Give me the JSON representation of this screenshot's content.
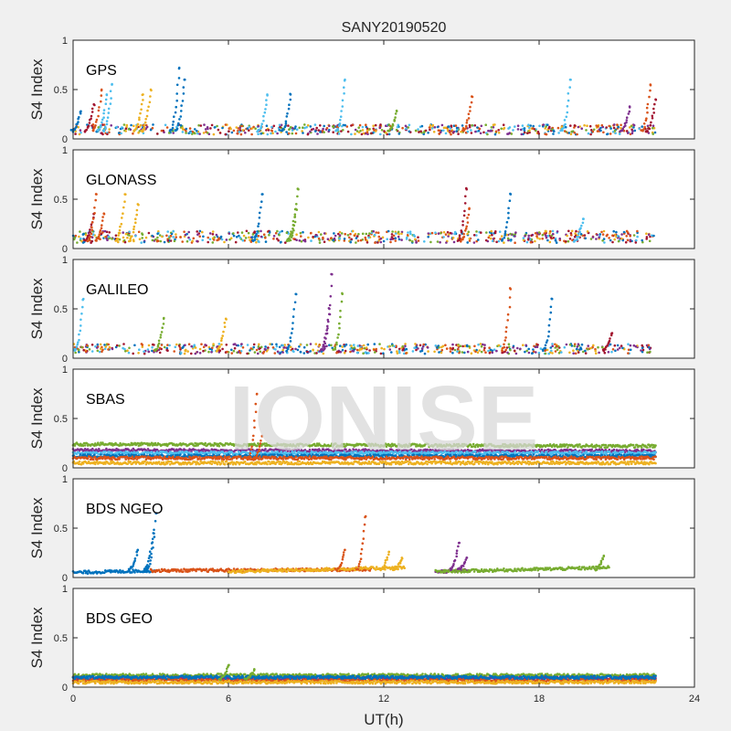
{
  "title": "SANY20190520",
  "xlabel": "UT(h)",
  "ylabel": "S4 Index",
  "watermark": "IONISE",
  "colors": [
    "#0072bd",
    "#d95319",
    "#edb120",
    "#7e2f8e",
    "#77ac30",
    "#4dbeee",
    "#a2142f"
  ],
  "chart_data": [
    {
      "type": "scatter",
      "label": "GPS",
      "xlim": [
        0,
        24
      ],
      "ylim": [
        0,
        1
      ],
      "xticks": [
        0,
        6,
        12,
        18,
        24
      ],
      "yticks": [
        0,
        0.5,
        1
      ],
      "xlabel": "UT(h)",
      "ylabel": "S4 Index",
      "baseline": 0.08,
      "noise": 0.05,
      "density": 220,
      "series": [
        {
          "x": [
            0,
            22.5
          ],
          "y": [
            0.1,
            0.1
          ]
        }
      ],
      "spikes": [
        [
          0.3,
          0.28,
          0
        ],
        [
          0.8,
          0.35,
          6
        ],
        [
          1.1,
          0.5,
          1
        ],
        [
          1.3,
          0.45,
          5
        ],
        [
          1.5,
          0.55,
          5
        ],
        [
          2.7,
          0.45,
          2
        ],
        [
          3.0,
          0.5,
          2
        ],
        [
          4.1,
          0.72,
          0
        ],
        [
          4.3,
          0.6,
          0
        ],
        [
          7.5,
          0.45,
          5
        ],
        [
          8.4,
          0.45,
          0
        ],
        [
          10.5,
          0.6,
          5
        ],
        [
          12.5,
          0.28,
          4
        ],
        [
          15.4,
          0.43,
          1
        ],
        [
          19.2,
          0.6,
          5
        ],
        [
          21.5,
          0.32,
          3
        ],
        [
          22.3,
          0.55,
          1
        ],
        [
          22.5,
          0.4,
          6
        ]
      ]
    },
    {
      "type": "scatter",
      "label": "GLONASS",
      "xlim": [
        0,
        24
      ],
      "ylim": [
        0,
        1
      ],
      "xticks": [
        0,
        6,
        12,
        18,
        24
      ],
      "yticks": [
        0,
        0.5,
        1
      ],
      "xlabel": "UT(h)",
      "ylabel": "S4 Index",
      "baseline": 0.1,
      "noise": 0.06,
      "density": 220,
      "series": [
        {
          "x": [
            0,
            22.5
          ],
          "y": [
            0.1,
            0.1
          ]
        }
      ],
      "spikes": [
        [
          0.8,
          0.35,
          6
        ],
        [
          0.9,
          0.55,
          1
        ],
        [
          1.2,
          0.35,
          1
        ],
        [
          2.0,
          0.55,
          2
        ],
        [
          2.5,
          0.45,
          2
        ],
        [
          7.3,
          0.55,
          0
        ],
        [
          8.6,
          0.4,
          4
        ],
        [
          8.7,
          0.6,
          4
        ],
        [
          15.2,
          0.6,
          6
        ],
        [
          16.9,
          0.55,
          0
        ],
        [
          15.3,
          0.4,
          1
        ],
        [
          19.7,
          0.3,
          5
        ]
      ]
    },
    {
      "type": "scatter",
      "label": "GALILEO",
      "xlim": [
        0,
        24
      ],
      "ylim": [
        0,
        1
      ],
      "xticks": [
        0,
        6,
        12,
        18,
        24
      ],
      "yticks": [
        0,
        0.5,
        1
      ],
      "xlabel": "UT(h)",
      "ylabel": "S4 Index",
      "baseline": 0.08,
      "noise": 0.05,
      "density": 200,
      "series": [
        {
          "x": [
            0,
            22.5
          ],
          "y": [
            0.09,
            0.09
          ]
        }
      ],
      "spikes": [
        [
          0.4,
          0.6,
          5
        ],
        [
          3.5,
          0.4,
          4
        ],
        [
          5.9,
          0.4,
          2
        ],
        [
          8.6,
          0.65,
          0
        ],
        [
          9.9,
          0.5,
          3
        ],
        [
          10.0,
          0.85,
          3
        ],
        [
          10.4,
          0.65,
          4
        ],
        [
          16.9,
          0.7,
          1
        ],
        [
          18.5,
          0.6,
          0
        ],
        [
          20.8,
          0.25,
          6
        ]
      ]
    },
    {
      "type": "scatter",
      "label": "SBAS",
      "xlim": [
        0,
        24
      ],
      "ylim": [
        0,
        1
      ],
      "xticks": [
        0,
        6,
        12,
        18,
        24
      ],
      "yticks": [
        0,
        0.5,
        1
      ],
      "xlabel": "UT(h)",
      "ylabel": "S4 Index",
      "series": [
        {
          "x": [
            0,
            22.5
          ],
          "y": [
            0.24,
            0.22
          ],
          "color": 4
        },
        {
          "x": [
            0,
            22.5
          ],
          "y": [
            0.18,
            0.17
          ],
          "color": 3
        },
        {
          "x": [
            0,
            22.5
          ],
          "y": [
            0.15,
            0.15
          ],
          "color": 5
        },
        {
          "x": [
            0,
            22.5
          ],
          "y": [
            0.12,
            0.12
          ],
          "color": 0
        },
        {
          "x": [
            0,
            22.5
          ],
          "y": [
            0.1,
            0.1
          ],
          "color": 1
        },
        {
          "x": [
            0,
            22.5
          ],
          "y": [
            0.05,
            0.05
          ],
          "color": 2
        }
      ],
      "spikes": [
        [
          7.1,
          0.75,
          1
        ],
        [
          7.3,
          0.32,
          1
        ]
      ]
    },
    {
      "type": "scatter",
      "label": "BDS NGEO",
      "xlim": [
        0,
        24
      ],
      "ylim": [
        0,
        1
      ],
      "xticks": [
        0,
        6,
        12,
        18,
        24
      ],
      "yticks": [
        0,
        0.5,
        1
      ],
      "xlabel": "UT(h)",
      "ylabel": "S4 Index",
      "series": [
        {
          "x": [
            0,
            3.2
          ],
          "y": [
            0.05,
            0.07
          ],
          "color": 0
        },
        {
          "x": [
            3.0,
            11.5
          ],
          "y": [
            0.07,
            0.08
          ],
          "color": 1
        },
        {
          "x": [
            6.0,
            12.8
          ],
          "y": [
            0.06,
            0.1
          ],
          "color": 2
        },
        {
          "x": [
            14.0,
            15.2
          ],
          "y": [
            0.06,
            0.07
          ],
          "color": 3
        },
        {
          "x": [
            14.0,
            20.7
          ],
          "y": [
            0.06,
            0.1
          ],
          "color": 4
        }
      ],
      "spikes": [
        [
          2.5,
          0.28,
          0
        ],
        [
          3.1,
          0.45,
          0
        ],
        [
          3.2,
          0.65,
          0
        ],
        [
          10.5,
          0.28,
          1
        ],
        [
          11.3,
          0.62,
          1
        ],
        [
          12.2,
          0.26,
          2
        ],
        [
          12.7,
          0.2,
          2
        ],
        [
          14.9,
          0.35,
          3
        ],
        [
          15.2,
          0.2,
          3
        ],
        [
          20.5,
          0.22,
          4
        ]
      ]
    },
    {
      "type": "scatter",
      "label": "BDS GEO",
      "xlim": [
        0,
        24
      ],
      "ylim": [
        0,
        1
      ],
      "xticks": [
        0,
        6,
        12,
        18,
        24
      ],
      "yticks": [
        0,
        0.5,
        1
      ],
      "xlabel": "UT(h)",
      "ylabel": "S4 Index",
      "series": [
        {
          "x": [
            0,
            22.5
          ],
          "y": [
            0.12,
            0.12
          ],
          "color": 4
        },
        {
          "x": [
            0,
            22.5
          ],
          "y": [
            0.09,
            0.09
          ],
          "color": 3
        },
        {
          "x": [
            0,
            22.5
          ],
          "y": [
            0.07,
            0.07
          ],
          "color": 1
        },
        {
          "x": [
            0,
            22.5
          ],
          "y": [
            0.05,
            0.05
          ],
          "color": 2
        },
        {
          "x": [
            0,
            22.5
          ],
          "y": [
            0.1,
            0.1
          ],
          "color": 0
        }
      ],
      "spikes": [
        [
          6.0,
          0.22,
          4
        ],
        [
          7.0,
          0.18,
          4
        ]
      ]
    }
  ]
}
